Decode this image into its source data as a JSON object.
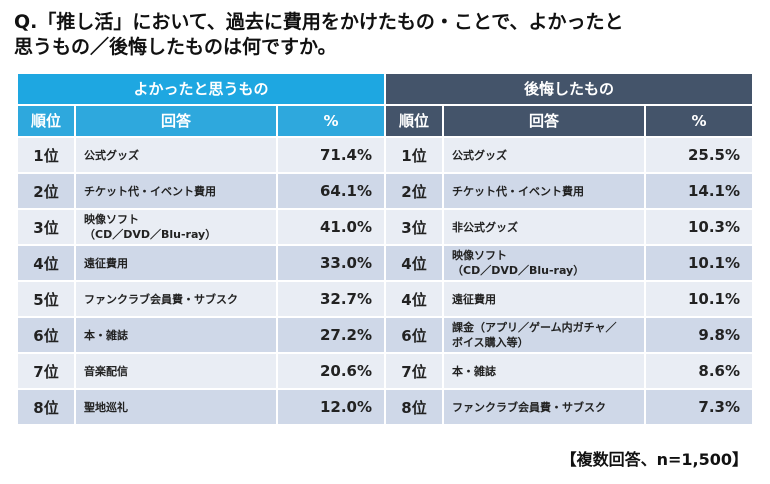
{
  "question": "Q.「推し活」において、過去に費用をかけたもの・ことで、よかったと\n思うもの／後悔したものは何ですか。",
  "footnote": "【複数回答、n=1,500】",
  "columns": {
    "rank": "順位",
    "item": "回答",
    "pct": "%"
  },
  "chart_data": {
    "type": "table",
    "tables": [
      {
        "title": "よかったと思うもの",
        "rows": [
          {
            "rank": "1位",
            "item": "公式グッズ",
            "pct": "71.4%",
            "value": 71.4
          },
          {
            "rank": "2位",
            "item": "チケット代・イベント費用",
            "pct": "64.1%",
            "value": 64.1
          },
          {
            "rank": "3位",
            "item": "映像ソフト\n（CD／DVD／Blu-ray）",
            "pct": "41.0%",
            "value": 41.0
          },
          {
            "rank": "4位",
            "item": "遠征費用",
            "pct": "33.0%",
            "value": 33.0
          },
          {
            "rank": "5位",
            "item": "ファンクラブ会員費・サブスク",
            "pct": "32.7%",
            "value": 32.7
          },
          {
            "rank": "6位",
            "item": "本・雑誌",
            "pct": "27.2%",
            "value": 27.2
          },
          {
            "rank": "7位",
            "item": "音楽配信",
            "pct": "20.6%",
            "value": 20.6
          },
          {
            "rank": "8位",
            "item": "聖地巡礼",
            "pct": "12.0%",
            "value": 12.0
          }
        ]
      },
      {
        "title": "後悔したもの",
        "rows": [
          {
            "rank": "1位",
            "item": "公式グッズ",
            "pct": "25.5%",
            "value": 25.5
          },
          {
            "rank": "2位",
            "item": "チケット代・イベント費用",
            "pct": "14.1%",
            "value": 14.1
          },
          {
            "rank": "3位",
            "item": "非公式グッズ",
            "pct": "10.3%",
            "value": 10.3
          },
          {
            "rank": "4位",
            "item": "映像ソフト\n（CD／DVD／Blu-ray）",
            "pct": "10.1%",
            "value": 10.1
          },
          {
            "rank": "4位",
            "item": "遠征費用",
            "pct": "10.1%",
            "value": 10.1
          },
          {
            "rank": "6位",
            "item": "課金（アプリ／ゲーム内ガチャ／\nボイス購入等）",
            "pct": "9.8%",
            "value": 9.8
          },
          {
            "rank": "7位",
            "item": "本・雑誌",
            "pct": "8.6%",
            "value": 8.6
          },
          {
            "rank": "8位",
            "item": "ファンクラブ会員費・サブスク",
            "pct": "7.3%",
            "value": 7.3
          }
        ]
      }
    ]
  }
}
